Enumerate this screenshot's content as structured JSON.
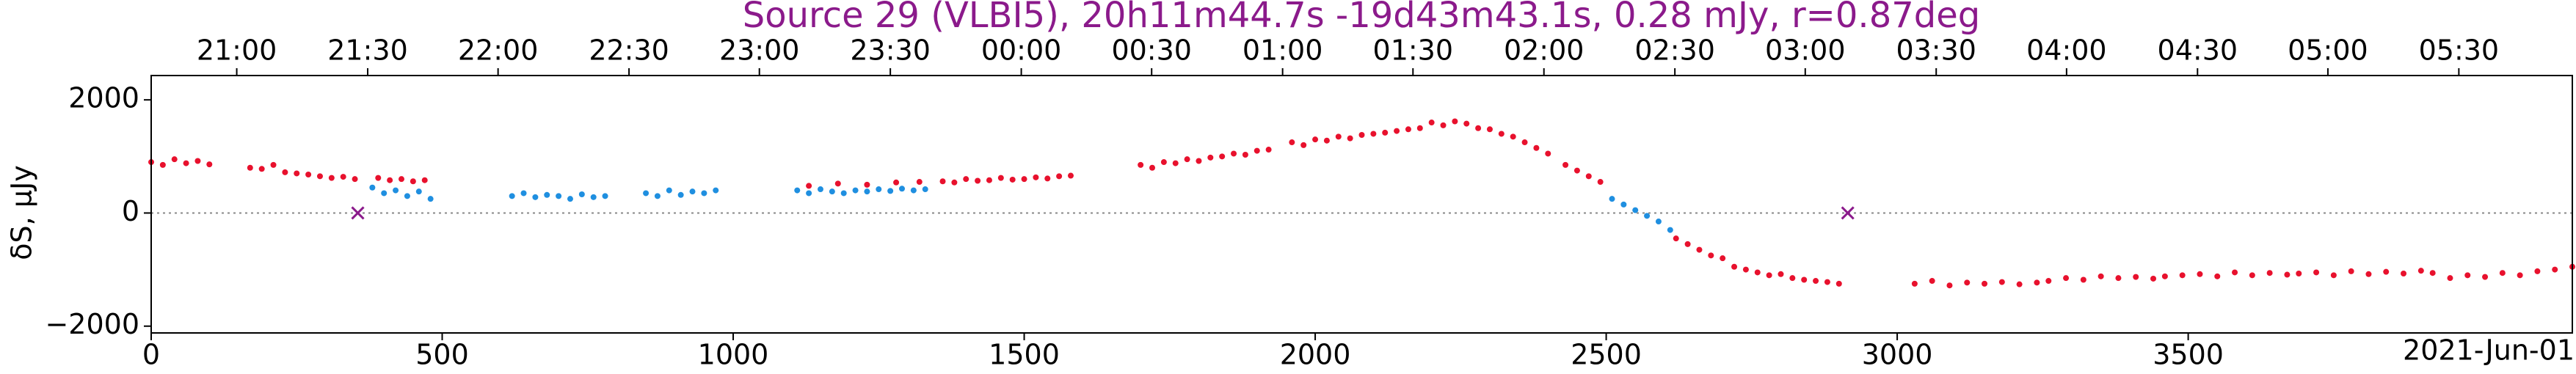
{
  "chart_data": {
    "type": "scatter",
    "title": "Source 29 (VLBI5), 20h11m44.7s -19d43m43.1s, 0.28 mJy, r=0.87deg",
    "ylabel": "δS, μJy",
    "x_annotation": "2021-Jun-01",
    "xlim": [
      0,
      4160
    ],
    "ylim": [
      -2120,
      2430
    ],
    "xticks": [
      0,
      500,
      1000,
      1500,
      2000,
      2500,
      3000,
      3500
    ],
    "yticks": [
      {
        "value": -2000,
        "label": "−2000"
      },
      0,
      2000
    ],
    "hline": 0,
    "x2ticks": [
      {
        "value": 147,
        "label": "21:00"
      },
      {
        "value": 372,
        "label": "21:30"
      },
      {
        "value": 596,
        "label": "22:00"
      },
      {
        "value": 821,
        "label": "22:30"
      },
      {
        "value": 1045,
        "label": "23:00"
      },
      {
        "value": 1270,
        "label": "23:30"
      },
      {
        "value": 1495,
        "label": "00:00"
      },
      {
        "value": 1719,
        "label": "00:30"
      },
      {
        "value": 1944,
        "label": "01:00"
      },
      {
        "value": 2168,
        "label": "01:30"
      },
      {
        "value": 2393,
        "label": "02:00"
      },
      {
        "value": 2618,
        "label": "02:30"
      },
      {
        "value": 2842,
        "label": "03:00"
      },
      {
        "value": 3067,
        "label": "03:30"
      },
      {
        "value": 3291,
        "label": "04:00"
      },
      {
        "value": 3516,
        "label": "04:30"
      },
      {
        "value": 3740,
        "label": "05:00"
      },
      {
        "value": 3965,
        "label": "05:30"
      }
    ],
    "series": [
      {
        "color": "#e8112d",
        "marker": "dot",
        "x": [
          0,
          20,
          40,
          60,
          80,
          100,
          170,
          190,
          210,
          230,
          250,
          270,
          290,
          310,
          330,
          350,
          390,
          410,
          430,
          450,
          470,
          1130,
          1180,
          1230,
          1280,
          1320,
          1360,
          1380,
          1400,
          1420,
          1440,
          1460,
          1480,
          1500,
          1520,
          1540,
          1560,
          1580,
          1700,
          1720,
          1740,
          1760,
          1780,
          1800,
          1820,
          1840,
          1860,
          1880,
          1900,
          1920,
          1960,
          1980,
          2000,
          2020,
          2040,
          2060,
          2080,
          2100,
          2120,
          2140,
          2160,
          2180,
          2200,
          2220,
          2240,
          2260,
          2280,
          2300,
          2320,
          2340,
          2360,
          2380,
          2400,
          2430,
          2450,
          2470,
          2490,
          2620,
          2640,
          2660,
          2680,
          2700,
          2720,
          2740,
          2760,
          2780,
          2800,
          2820,
          2840,
          2860,
          2880,
          2900,
          3030,
          3060,
          3090,
          3120,
          3150,
          3180,
          3210,
          3240,
          3260,
          3290,
          3320,
          3350,
          3380,
          3410,
          3440,
          3460,
          3490,
          3520,
          3550,
          3580,
          3610,
          3640,
          3670,
          3690,
          3720,
          3750,
          3780,
          3810,
          3840,
          3870,
          3900,
          3920,
          3950,
          3980,
          4010,
          4040,
          4070,
          4100,
          4130,
          4160
        ],
        "values": [
          900,
          850,
          950,
          880,
          920,
          860,
          800,
          780,
          850,
          720,
          700,
          680,
          650,
          620,
          640,
          600,
          620,
          580,
          600,
          560,
          580,
          480,
          520,
          500,
          540,
          550,
          560,
          540,
          600,
          570,
          580,
          620,
          590,
          600,
          630,
          610,
          650,
          660,
          850,
          800,
          900,
          880,
          950,
          920,
          980,
          1000,
          1050,
          1030,
          1100,
          1120,
          1250,
          1200,
          1300,
          1280,
          1350,
          1320,
          1380,
          1400,
          1420,
          1450,
          1480,
          1500,
          1600,
          1550,
          1620,
          1580,
          1500,
          1480,
          1400,
          1350,
          1250,
          1150,
          1050,
          850,
          750,
          650,
          550,
          -450,
          -550,
          -650,
          -750,
          -800,
          -950,
          -1000,
          -1050,
          -1100,
          -1080,
          -1150,
          -1180,
          -1200,
          -1220,
          -1250,
          -1250,
          -1200,
          -1280,
          -1230,
          -1250,
          -1220,
          -1260,
          -1230,
          -1200,
          -1150,
          -1180,
          -1120,
          -1150,
          -1130,
          -1160,
          -1120,
          -1100,
          -1080,
          -1120,
          -1050,
          -1100,
          -1060,
          -1090,
          -1070,
          -1050,
          -1100,
          -1030,
          -1080,
          -1040,
          -1070,
          -1020,
          -1060,
          -1150,
          -1100,
          -1130,
          -1060,
          -1100,
          -1030,
          -1000,
          -950
        ]
      },
      {
        "color": "#1f8fe0",
        "marker": "dot",
        "x": [
          380,
          400,
          420,
          440,
          460,
          480,
          620,
          640,
          660,
          680,
          700,
          720,
          740,
          760,
          780,
          850,
          870,
          890,
          910,
          930,
          950,
          970,
          1110,
          1130,
          1150,
          1170,
          1190,
          1210,
          1230,
          1250,
          1270,
          1290,
          1310,
          1330,
          2510,
          2530,
          2550,
          2570,
          2590,
          2610
        ],
        "values": [
          450,
          350,
          400,
          300,
          380,
          250,
          300,
          350,
          280,
          320,
          300,
          250,
          330,
          280,
          300,
          350,
          300,
          400,
          320,
          380,
          350,
          400,
          400,
          350,
          420,
          380,
          350,
          400,
          380,
          420,
          390,
          430,
          400,
          420,
          250,
          150,
          50,
          -50,
          -150,
          -300
        ]
      },
      {
        "color": "#8b1a8b",
        "marker": "x",
        "x": [
          355,
          2915
        ],
        "values": [
          0,
          0
        ]
      }
    ]
  }
}
